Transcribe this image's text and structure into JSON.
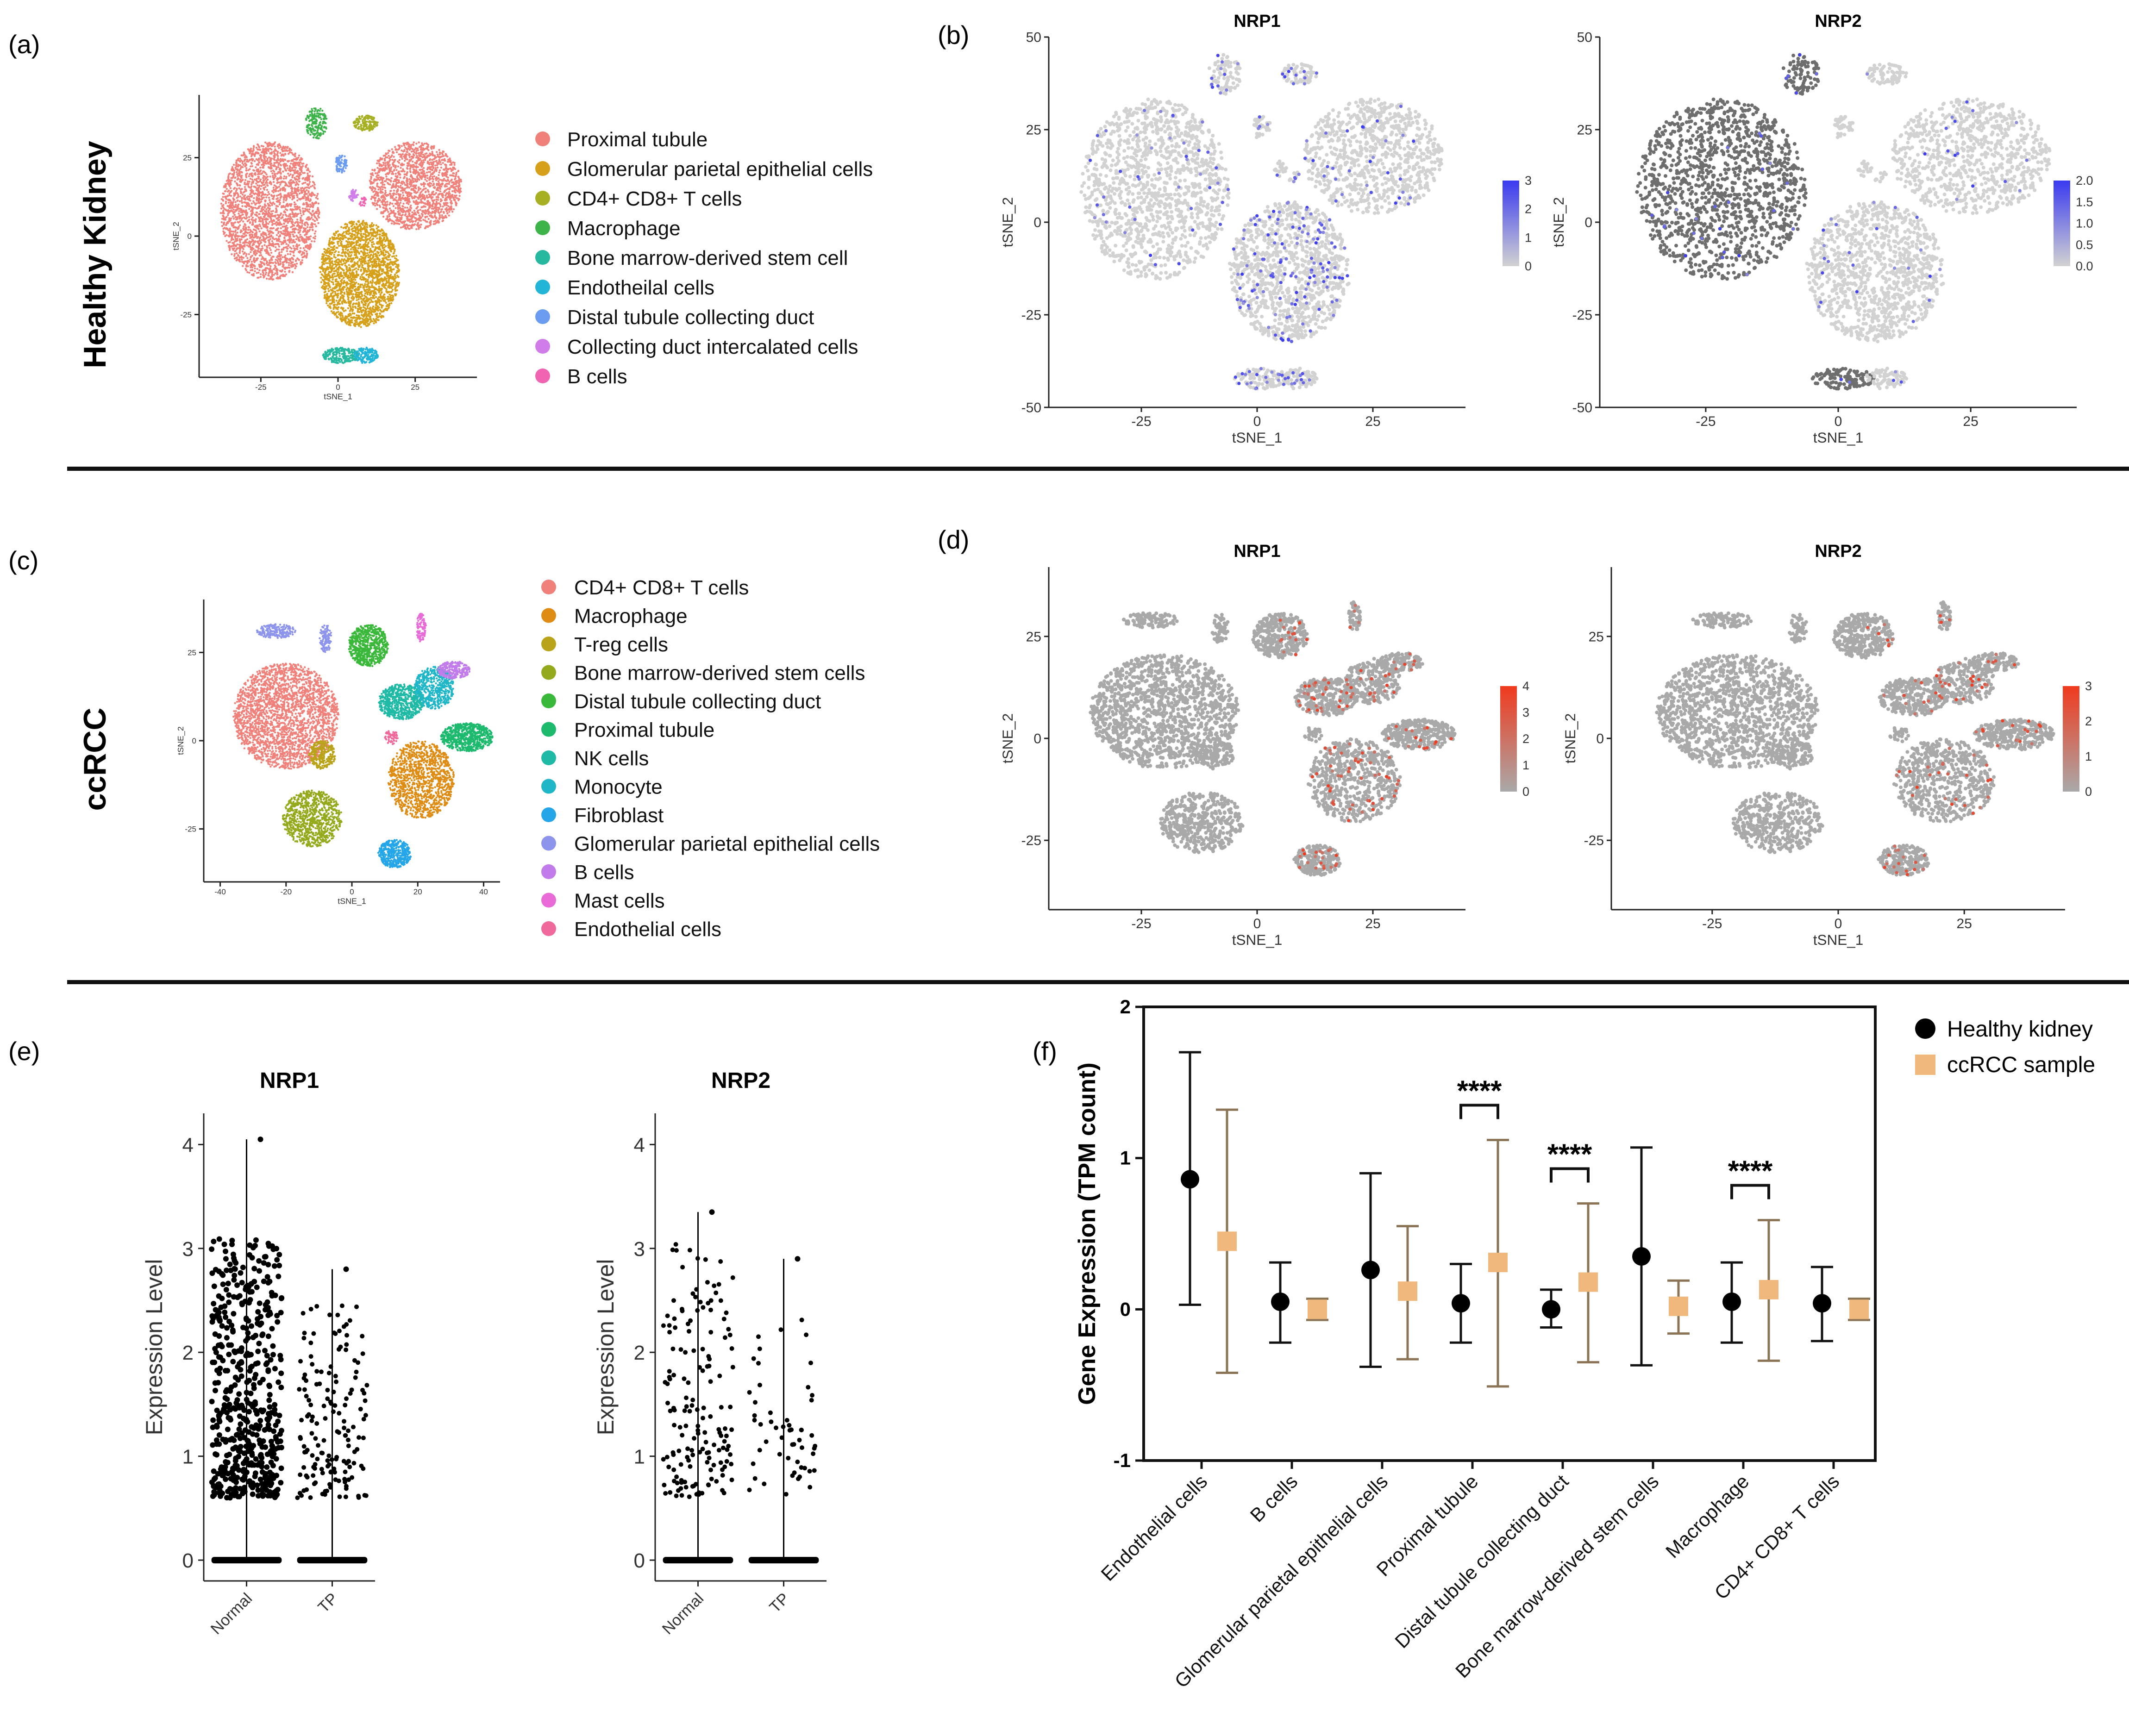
{
  "panels": {
    "a": "(a)",
    "b": "(b)",
    "c": "(c)",
    "d": "(d)",
    "e": "(e)",
    "f": "(f)"
  },
  "rows": {
    "healthy": "Healthy Kidney",
    "ccrcc": "ccRCC"
  },
  "colors": {
    "point_grey": "#c4c4c4",
    "point_grey_dark": "#a9a9a9",
    "dark_cluster": "#6e6e6e",
    "blue_high": "#3a3af0",
    "red_high": "#f03a1e",
    "healthy_marker": "#000000",
    "ccrcc_marker": "#f0b87c",
    "ccrcc_errbar": "#8b7355"
  },
  "chart_data": [
    {
      "id": "a",
      "type": "scatter",
      "subtype": "tsne-clusters",
      "xlabel": "tSNE_1",
      "ylabel": "tSNE_2",
      "xlim": [
        -45,
        45
      ],
      "ylim": [
        -45,
        45
      ],
      "xticks": [
        "-25",
        "0",
        "25"
      ],
      "yticks": [
        "25",
        "0",
        "-25"
      ],
      "xtick_values": [
        -25,
        0,
        25
      ],
      "ytick_values": [
        25,
        0,
        -25
      ],
      "legend": [
        {
          "label": "Proximal tubule",
          "color": "#F0817A"
        },
        {
          "label": "Glomerular parietal epithelial cells",
          "color": "#D7A01A"
        },
        {
          "label": "CD4+ CD8+ T cells",
          "color": "#A7B023"
        },
        {
          "label": "Macrophage",
          "color": "#3DB34A"
        },
        {
          "label": "Bone marrow-derived stem cell",
          "color": "#26B9A0"
        },
        {
          "label": "Endotheilal cells",
          "color": "#22B5D8"
        },
        {
          "label": "Distal tubule collecting duct",
          "color": "#6C9CF0"
        },
        {
          "label": "Collecting duct intercalated cells",
          "color": "#D07DEA"
        },
        {
          "label": "B cells",
          "color": "#F064B1"
        }
      ]
    },
    {
      "id": "b1",
      "type": "scatter",
      "subtype": "feature-plot",
      "title": "NRP1",
      "xlabel": "tSNE_1",
      "ylabel": "tSNE_2",
      "xlim": [
        -45,
        45
      ],
      "ylim": [
        -50,
        50
      ],
      "xticks": [
        "-25",
        "0",
        "25"
      ],
      "yticks": [
        "50",
        "25",
        "0",
        "-25",
        "-50"
      ],
      "xtick_values": [
        -25,
        0,
        25
      ],
      "ytick_values": [
        50,
        25,
        0,
        -25,
        -50
      ],
      "colorbar": {
        "ticks": [
          "3",
          "2",
          "1",
          "0"
        ],
        "range": [
          0,
          3
        ],
        "low": "#d2d2d2",
        "high": "#3a3af0"
      }
    },
    {
      "id": "b2",
      "type": "scatter",
      "subtype": "feature-plot",
      "title": "NRP2",
      "xlabel": "tSNE_1",
      "ylabel": "tSNE_2",
      "xlim": [
        -45,
        45
      ],
      "ylim": [
        -50,
        50
      ],
      "xticks": [
        "-25",
        "0",
        "25"
      ],
      "yticks": [
        "50",
        "25",
        "0",
        "-25",
        "-50"
      ],
      "xtick_values": [
        -25,
        0,
        25
      ],
      "ytick_values": [
        50,
        25,
        0,
        -25,
        -50
      ],
      "colorbar": {
        "ticks": [
          "2.0",
          "1.5",
          "1.0",
          "0.5",
          "0.0"
        ],
        "range": [
          0,
          2
        ],
        "low": "#d2d2d2",
        "high": "#3a3af0"
      }
    },
    {
      "id": "c",
      "type": "scatter",
      "subtype": "tsne-clusters",
      "xlabel": "tSNE_1",
      "ylabel": "tSNE_2",
      "xlim": [
        -45,
        45
      ],
      "ylim": [
        -40,
        40
      ],
      "xticks": [
        "-40",
        "-20",
        "0",
        "20",
        "40"
      ],
      "yticks": [
        "25",
        "0",
        "-25"
      ],
      "xtick_values": [
        -40,
        -20,
        0,
        20,
        40
      ],
      "ytick_values": [
        25,
        0,
        -25
      ],
      "legend": [
        {
          "label": "CD4+ CD8+ T cells",
          "color": "#F0817A"
        },
        {
          "label": "Macrophage",
          "color": "#DE8C14"
        },
        {
          "label": "T-reg cells",
          "color": "#B9A318"
        },
        {
          "label": "Bone marrow-derived stem cells",
          "color": "#94AA1C"
        },
        {
          "label": "Distal tubule collecting duct",
          "color": "#3AB83A"
        },
        {
          "label": "Proximal tubule",
          "color": "#1DBA6E"
        },
        {
          "label": "NK cells",
          "color": "#1FBAA5"
        },
        {
          "label": "Monocyte",
          "color": "#1FB6C8"
        },
        {
          "label": "Fibroblast",
          "color": "#24A6E8"
        },
        {
          "label": "Glomerular parietal epithelial cells",
          "color": "#8C94EC"
        },
        {
          "label": "B cells",
          "color": "#C27BEA"
        },
        {
          "label": "Mast cells",
          "color": "#E86BD8"
        },
        {
          "label": "Endothelial cells",
          "color": "#F0699C"
        }
      ]
    },
    {
      "id": "d1",
      "type": "scatter",
      "subtype": "feature-plot",
      "title": "NRP1",
      "xlabel": "tSNE_1",
      "ylabel": "tSNE_2",
      "xlim": [
        -45,
        45
      ],
      "ylim": [
        -42,
        42
      ],
      "xticks": [
        "-25",
        "0",
        "25"
      ],
      "yticks": [
        "25",
        "0",
        "-25"
      ],
      "xtick_values": [
        -25,
        0,
        25
      ],
      "ytick_values": [
        25,
        0,
        -25
      ],
      "colorbar": {
        "ticks": [
          "4",
          "3",
          "2",
          "1",
          "0"
        ],
        "range": [
          0,
          4
        ],
        "low": "#a9a9a9",
        "high": "#f03a1e"
      }
    },
    {
      "id": "d2",
      "type": "scatter",
      "subtype": "feature-plot",
      "title": "NRP2",
      "xlabel": "tSNE_1",
      "ylabel": "tSNE_2",
      "xlim": [
        -45,
        45
      ],
      "ylim": [
        -42,
        42
      ],
      "xticks": [
        "-25",
        "0",
        "25"
      ],
      "yticks": [
        "25",
        "0",
        "-25"
      ],
      "xtick_values": [
        -25,
        0,
        25
      ],
      "ytick_values": [
        25,
        0,
        -25
      ],
      "colorbar": {
        "ticks": [
          "3",
          "2",
          "1",
          "0"
        ],
        "range": [
          0,
          3
        ],
        "low": "#a9a9a9",
        "high": "#f03a1e"
      }
    },
    {
      "id": "e1",
      "type": "scatter",
      "subtype": "violin-jitter",
      "title": "NRP1",
      "ylabel": "Expression Level",
      "categories": [
        "Normal",
        "TP"
      ],
      "ylim": [
        -0.2,
        4.3
      ],
      "yticks": [
        "4",
        "3",
        "2",
        "1",
        "0"
      ],
      "ytick_values": [
        4,
        3,
        2,
        1,
        0
      ],
      "max_values": [
        4.05,
        2.8
      ],
      "nonzero_counts": [
        520,
        160
      ]
    },
    {
      "id": "e2",
      "type": "scatter",
      "subtype": "violin-jitter",
      "title": "NRP2",
      "ylabel": "Expression Level",
      "categories": [
        "Normal",
        "TP"
      ],
      "ylim": [
        -0.2,
        4.3
      ],
      "yticks": [
        "4",
        "3",
        "2",
        "1",
        "0"
      ],
      "ytick_values": [
        4,
        3,
        2,
        1,
        0
      ],
      "max_values": [
        3.35,
        2.9
      ],
      "nonzero_counts": [
        160,
        55
      ]
    },
    {
      "id": "f",
      "type": "scatter",
      "subtype": "error-bar",
      "ylabel": "Gene Expression (TPM count)",
      "ylim": [
        -1,
        2
      ],
      "yticks": [
        "2",
        "1",
        "0",
        "-1"
      ],
      "ytick_values": [
        2,
        1,
        0,
        -1
      ],
      "categories": [
        "Endothelial cells",
        "B cells",
        "Glomerular parietal epithelial cells",
        "Proximal tubule",
        "Distal tubule collecting duct",
        "Bone marrow-derived stem cells",
        "Macrophage",
        "CD4+ CD8+ T cells"
      ],
      "series": [
        {
          "name": "Healthy kidney",
          "mean": [
            0.86,
            0.05,
            0.26,
            0.04,
            0.0,
            0.35,
            0.05,
            0.04
          ],
          "lower": [
            0.03,
            -0.22,
            -0.38,
            -0.22,
            -0.12,
            -0.37,
            -0.22,
            -0.21
          ],
          "upper": [
            1.7,
            0.31,
            0.9,
            0.3,
            0.13,
            1.07,
            0.31,
            0.28
          ]
        },
        {
          "name": "ccRCC sample",
          "mean": [
            0.45,
            0.0,
            0.12,
            0.31,
            0.18,
            0.02,
            0.13,
            0.0
          ],
          "lower": [
            -0.42,
            -0.07,
            -0.33,
            -0.51,
            -0.35,
            -0.16,
            -0.34,
            -0.07
          ],
          "upper": [
            1.32,
            0.07,
            0.55,
            1.12,
            0.7,
            0.19,
            0.59,
            0.07
          ]
        }
      ],
      "significance": [
        {
          "category": "Proximal tubule",
          "label": "****"
        },
        {
          "category": "Distal tubule collecting duct",
          "label": "****"
        },
        {
          "category": "Macrophage",
          "label": "****"
        }
      ]
    }
  ]
}
